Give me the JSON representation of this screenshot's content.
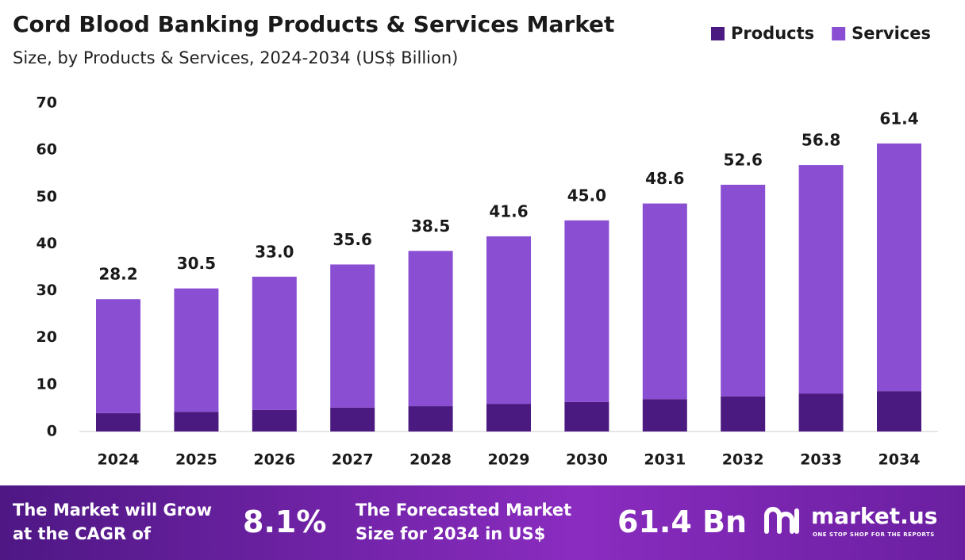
{
  "chart_data": {
    "type": "stacked-bar",
    "title": "Cord Blood Banking Products & Services Market",
    "subtitle": "Size, by Products & Services, 2024-2034 (US$ Billion)",
    "categories": [
      "2024",
      "2025",
      "2026",
      "2027",
      "2028",
      "2029",
      "2030",
      "2031",
      "2032",
      "2033",
      "2034"
    ],
    "series": [
      {
        "name": "Products",
        "color": "#4b1a80",
        "values": [
          3.9,
          4.2,
          4.6,
          5.1,
          5.4,
          5.9,
          6.3,
          6.9,
          7.5,
          8.1,
          8.6
        ]
      },
      {
        "name": "Services",
        "color": "#8a4ed2",
        "values": [
          24.3,
          26.3,
          28.4,
          30.5,
          33.1,
          35.7,
          38.7,
          41.7,
          45.1,
          48.7,
          52.8
        ]
      }
    ],
    "totals": [
      28.2,
      30.5,
      33.0,
      35.6,
      38.5,
      41.6,
      45.0,
      48.6,
      52.6,
      56.8,
      61.4
    ],
    "totals_labels": [
      "28.2",
      "30.5",
      "33.0",
      "35.6",
      "38.5",
      "41.6",
      "45.0",
      "48.6",
      "52.6",
      "56.8",
      "61.4"
    ],
    "ylim": [
      0,
      70
    ],
    "yticks": [
      0,
      10,
      20,
      30,
      40,
      50,
      60,
      70
    ],
    "legend": "top-right",
    "grid": false
  },
  "footer": {
    "cagr_text": "The Market will Grow at the CAGR of",
    "cagr_value": "8.1%",
    "forecast_text": "The Forecasted Market Size for 2034 in US$",
    "forecast_value": "61.4 Bn",
    "logo": "market.us",
    "tagline": "ONE STOP SHOP FOR THE REPORTS"
  }
}
